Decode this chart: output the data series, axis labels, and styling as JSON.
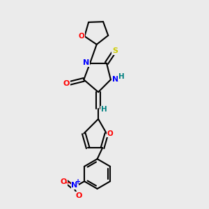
{
  "bg_color": "#ebebeb",
  "bond_color": "#000000",
  "bond_width": 1.5,
  "atom_colors": {
    "O": "#ff0000",
    "N": "#0000ff",
    "S": "#cccc00",
    "H": "#008080",
    "C": "#000000",
    "Np": "#0000ff"
  },
  "figsize": [
    3.0,
    3.0
  ],
  "dpi": 100
}
